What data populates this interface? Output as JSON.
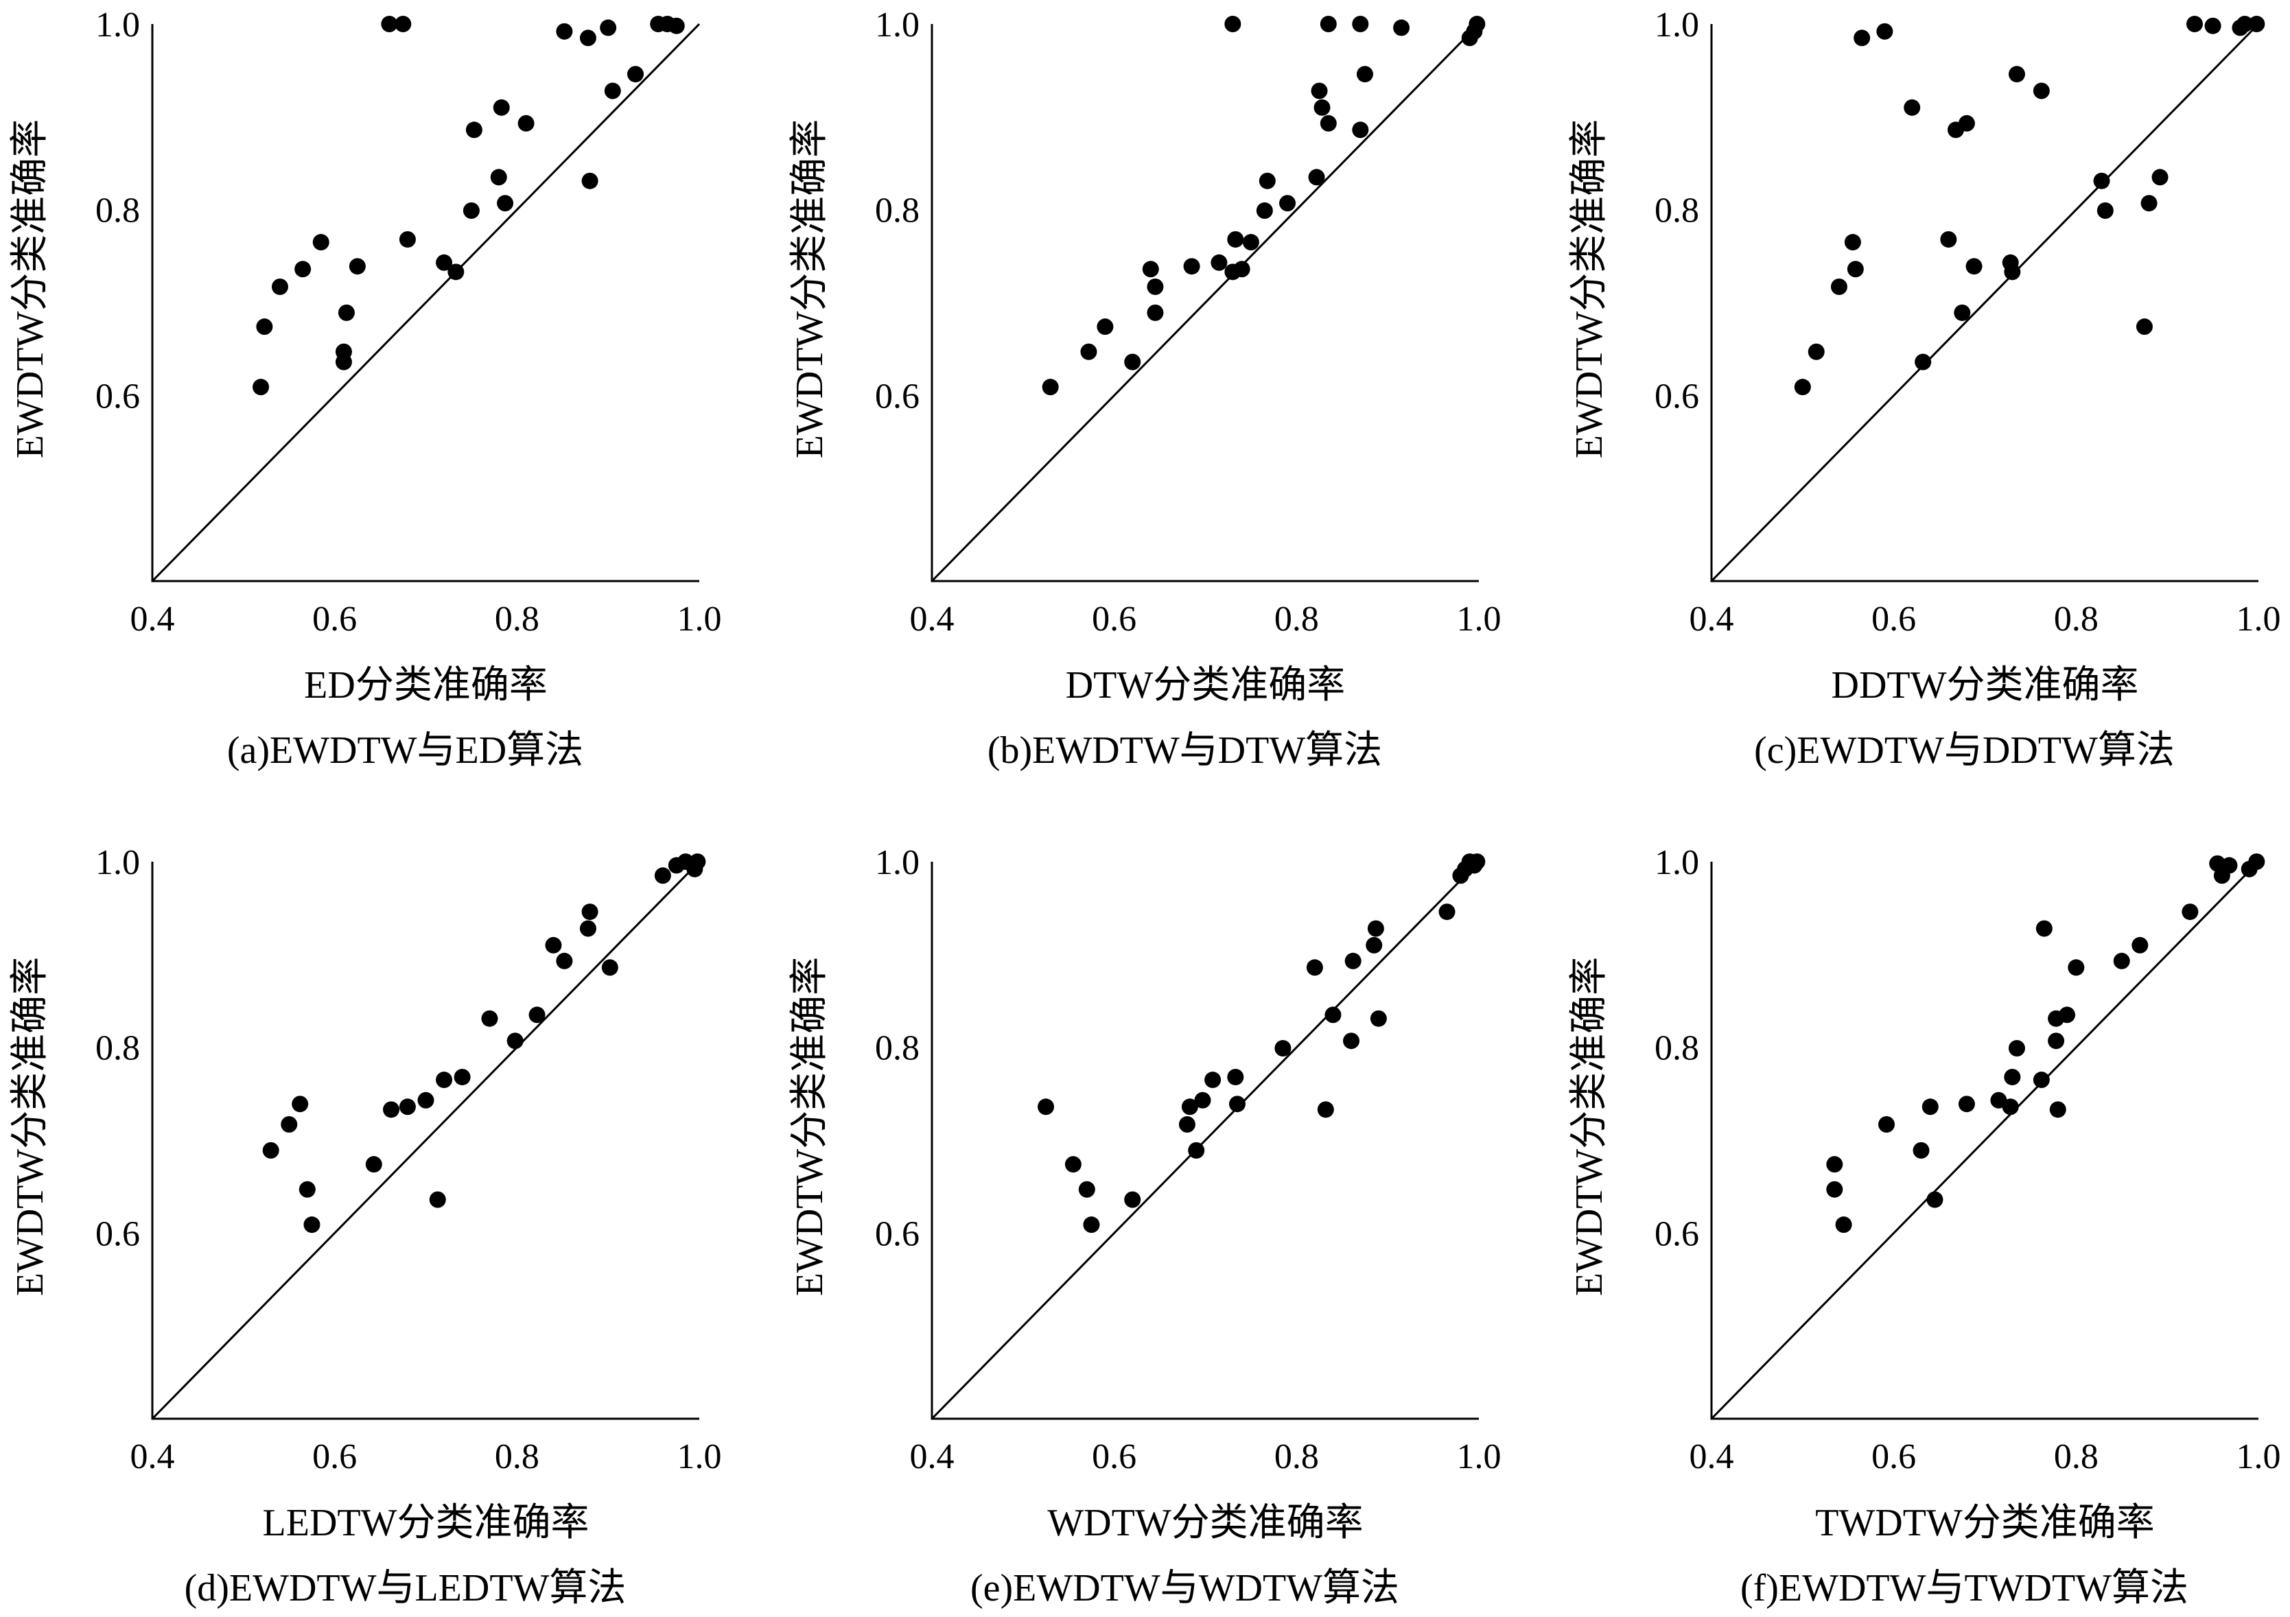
{
  "chart_data": [
    {
      "type": "scatter",
      "xlabel": "ED分类准确率",
      "ylabel": "EWDTW分类准确率",
      "caption": "(a)EWDTW与ED算法",
      "xlim": [
        0.4,
        1.0
      ],
      "ylim": [
        0.4,
        1.0
      ],
      "xticks": [
        "0.4",
        "0.6",
        "0.8",
        "1.0"
      ],
      "yticks": [
        "0.6",
        "0.8",
        "1.0"
      ],
      "diagonal": true,
      "points": [
        [
          0.519,
          0.609
        ],
        [
          0.523,
          0.674
        ],
        [
          0.54,
          0.717
        ],
        [
          0.565,
          0.736
        ],
        [
          0.585,
          0.765
        ],
        [
          0.61,
          0.636
        ],
        [
          0.61,
          0.647
        ],
        [
          0.613,
          0.689
        ],
        [
          0.625,
          0.739
        ],
        [
          0.66,
          1.0
        ],
        [
          0.675,
          1.0
        ],
        [
          0.68,
          0.768
        ],
        [
          0.72,
          0.743
        ],
        [
          0.733,
          0.733
        ],
        [
          0.75,
          0.799
        ],
        [
          0.753,
          0.886
        ],
        [
          0.78,
          0.835
        ],
        [
          0.783,
          0.91
        ],
        [
          0.787,
          0.807
        ],
        [
          0.81,
          0.893
        ],
        [
          0.852,
          0.992
        ],
        [
          0.88,
          0.831
        ],
        [
          0.878,
          0.985
        ],
        [
          0.9,
          0.996
        ],
        [
          0.905,
          0.928
        ],
        [
          0.93,
          0.946
        ],
        [
          0.955,
          1.0
        ],
        [
          0.965,
          1.0
        ],
        [
          0.975,
          0.998
        ]
      ]
    },
    {
      "type": "scatter",
      "xlabel": "DTW分类准确率",
      "ylabel": "EWDTW分类准确率",
      "caption": "(b)EWDTW与DTW算法",
      "xlim": [
        0.4,
        1.0
      ],
      "ylim": [
        0.4,
        1.0
      ],
      "xticks": [
        "0.4",
        "0.6",
        "0.8",
        "1.0"
      ],
      "yticks": [
        "0.6",
        "0.8",
        "1.0"
      ],
      "diagonal": true,
      "points": [
        [
          0.53,
          0.609
        ],
        [
          0.572,
          0.647
        ],
        [
          0.59,
          0.674
        ],
        [
          0.62,
          0.636
        ],
        [
          0.64,
          0.736
        ],
        [
          0.645,
          0.717
        ],
        [
          0.645,
          0.689
        ],
        [
          0.685,
          0.739
        ],
        [
          0.715,
          0.743
        ],
        [
          0.73,
          0.733
        ],
        [
          0.733,
          0.768
        ],
        [
          0.74,
          0.736
        ],
        [
          0.75,
          0.765
        ],
        [
          0.765,
          0.799
        ],
        [
          0.768,
          0.831
        ],
        [
          0.79,
          0.807
        ],
        [
          0.822,
          0.835
        ],
        [
          0.825,
          0.928
        ],
        [
          0.828,
          0.91
        ],
        [
          0.835,
          0.893
        ],
        [
          0.87,
          0.886
        ],
        [
          0.875,
          0.946
        ],
        [
          0.73,
          1.0
        ],
        [
          0.835,
          1.0
        ],
        [
          0.87,
          1.0
        ],
        [
          0.915,
          0.996
        ],
        [
          0.99,
          0.985
        ],
        [
          0.995,
          0.992
        ],
        [
          0.998,
          1.0
        ]
      ]
    },
    {
      "type": "scatter",
      "xlabel": "DDTW分类准确率",
      "ylabel": "EWDTW分类准确率",
      "caption": "(c)EWDTW与DDTW算法",
      "xlim": [
        0.4,
        1.0
      ],
      "ylim": [
        0.4,
        1.0
      ],
      "xticks": [
        "0.4",
        "0.6",
        "0.8",
        "1.0"
      ],
      "yticks": [
        "0.6",
        "0.8",
        "1.0"
      ],
      "diagonal": true,
      "points": [
        [
          0.5,
          0.609
        ],
        [
          0.515,
          0.647
        ],
        [
          0.54,
          0.717
        ],
        [
          0.555,
          0.765
        ],
        [
          0.558,
          0.736
        ],
        [
          0.565,
          0.985
        ],
        [
          0.59,
          0.992
        ],
        [
          0.62,
          0.91
        ],
        [
          0.632,
          0.636
        ],
        [
          0.66,
          0.768
        ],
        [
          0.668,
          0.886
        ],
        [
          0.675,
          0.689
        ],
        [
          0.68,
          0.893
        ],
        [
          0.688,
          0.739
        ],
        [
          0.728,
          0.743
        ],
        [
          0.73,
          0.733
        ],
        [
          0.735,
          0.946
        ],
        [
          0.762,
          0.928
        ],
        [
          0.828,
          0.831
        ],
        [
          0.832,
          0.799
        ],
        [
          0.875,
          0.674
        ],
        [
          0.88,
          0.807
        ],
        [
          0.892,
          0.835
        ],
        [
          0.93,
          1.0
        ],
        [
          0.95,
          0.998
        ],
        [
          0.98,
          0.996
        ],
        [
          0.985,
          1.0
        ],
        [
          0.998,
          1.0
        ]
      ]
    },
    {
      "type": "scatter",
      "xlabel": "LEDTW分类准确率",
      "ylabel": "EWDTW分类准确率",
      "caption": "(d)EWDTW与LEDTW算法",
      "xlim": [
        0.4,
        1.0
      ],
      "ylim": [
        0.4,
        1.0
      ],
      "xticks": [
        "0.4",
        "0.6",
        "0.8",
        "1.0"
      ],
      "yticks": [
        "0.6",
        "0.8",
        "1.0"
      ],
      "diagonal": true,
      "points": [
        [
          0.53,
          0.689
        ],
        [
          0.55,
          0.717
        ],
        [
          0.562,
          0.739
        ],
        [
          0.57,
          0.647
        ],
        [
          0.575,
          0.609
        ],
        [
          0.643,
          0.674
        ],
        [
          0.662,
          0.733
        ],
        [
          0.68,
          0.736
        ],
        [
          0.7,
          0.743
        ],
        [
          0.713,
          0.636
        ],
        [
          0.72,
          0.765
        ],
        [
          0.74,
          0.768
        ],
        [
          0.77,
          0.831
        ],
        [
          0.798,
          0.807
        ],
        [
          0.822,
          0.835
        ],
        [
          0.84,
          0.91
        ],
        [
          0.852,
          0.893
        ],
        [
          0.878,
          0.928
        ],
        [
          0.88,
          0.946
        ],
        [
          0.902,
          0.886
        ],
        [
          0.96,
          0.985
        ],
        [
          0.975,
          0.996
        ],
        [
          0.985,
          1.0
        ],
        [
          0.995,
          0.992
        ],
        [
          0.998,
          1.0
        ]
      ]
    },
    {
      "type": "scatter",
      "xlabel": "WDTW分类准确率",
      "ylabel": "EWDTW分类准确率",
      "caption": "(e)EWDTW与WDTW算法",
      "xlim": [
        0.4,
        1.0
      ],
      "ylim": [
        0.4,
        1.0
      ],
      "xticks": [
        "0.4",
        "0.6",
        "0.8",
        "1.0"
      ],
      "yticks": [
        "0.6",
        "0.8",
        "1.0"
      ],
      "diagonal": true,
      "points": [
        [
          0.525,
          0.736
        ],
        [
          0.555,
          0.674
        ],
        [
          0.57,
          0.647
        ],
        [
          0.575,
          0.609
        ],
        [
          0.62,
          0.636
        ],
        [
          0.68,
          0.717
        ],
        [
          0.683,
          0.736
        ],
        [
          0.69,
          0.689
        ],
        [
          0.697,
          0.743
        ],
        [
          0.708,
          0.765
        ],
        [
          0.733,
          0.768
        ],
        [
          0.735,
          0.739
        ],
        [
          0.785,
          0.799
        ],
        [
          0.82,
          0.886
        ],
        [
          0.832,
          0.733
        ],
        [
          0.84,
          0.835
        ],
        [
          0.86,
          0.807
        ],
        [
          0.862,
          0.893
        ],
        [
          0.885,
          0.91
        ],
        [
          0.887,
          0.928
        ],
        [
          0.89,
          0.831
        ],
        [
          0.965,
          0.946
        ],
        [
          0.98,
          0.985
        ],
        [
          0.985,
          0.992
        ],
        [
          0.99,
          1.0
        ],
        [
          0.995,
          0.996
        ],
        [
          0.998,
          1.0
        ]
      ]
    },
    {
      "type": "scatter",
      "xlabel": "TWDTW分类准确率",
      "ylabel": "EWDTW分类准确率",
      "caption": "(f)EWDTW与TWDTW算法",
      "xlim": [
        0.4,
        1.0
      ],
      "ylim": [
        0.4,
        1.0
      ],
      "xticks": [
        "0.4",
        "0.6",
        "0.8",
        "1.0"
      ],
      "yticks": [
        "0.6",
        "0.8",
        "1.0"
      ],
      "diagonal": true,
      "points": [
        [
          0.535,
          0.674
        ],
        [
          0.535,
          0.647
        ],
        [
          0.545,
          0.609
        ],
        [
          0.592,
          0.717
        ],
        [
          0.63,
          0.689
        ],
        [
          0.64,
          0.736
        ],
        [
          0.645,
          0.636
        ],
        [
          0.68,
          0.739
        ],
        [
          0.715,
          0.743
        ],
        [
          0.728,
          0.736
        ],
        [
          0.73,
          0.768
        ],
        [
          0.735,
          0.799
        ],
        [
          0.762,
          0.765
        ],
        [
          0.765,
          0.928
        ],
        [
          0.778,
          0.831
        ],
        [
          0.778,
          0.807
        ],
        [
          0.78,
          0.733
        ],
        [
          0.79,
          0.835
        ],
        [
          0.8,
          0.886
        ],
        [
          0.85,
          0.893
        ],
        [
          0.87,
          0.91
        ],
        [
          0.925,
          0.946
        ],
        [
          0.955,
          0.998
        ],
        [
          0.96,
          0.985
        ],
        [
          0.968,
          0.996
        ],
        [
          0.99,
          0.992
        ],
        [
          0.998,
          1.0
        ]
      ]
    }
  ]
}
